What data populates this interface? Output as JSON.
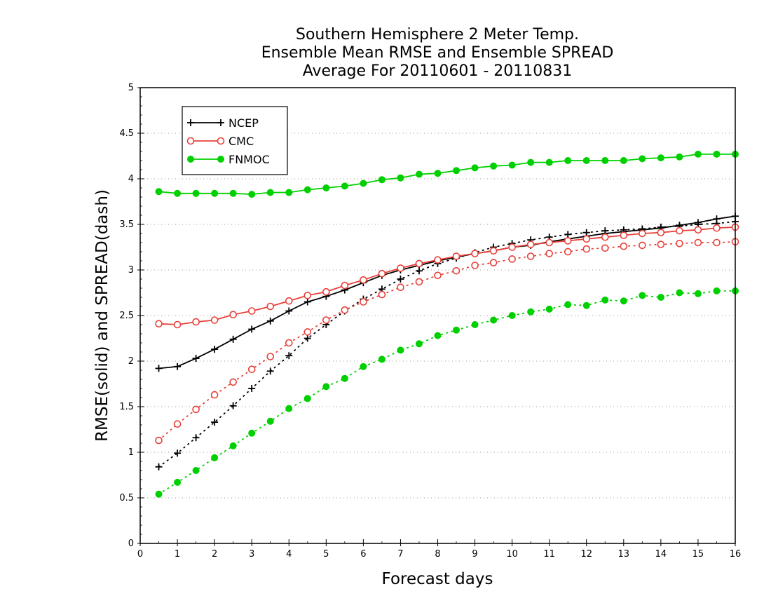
{
  "chart_data": {
    "type": "line",
    "title": [
      "Southern Hemisphere 2 Meter Temp.",
      "Ensemble Mean RMSE and Ensemble SPREAD",
      "Average For 20110601 - 20110831"
    ],
    "xlabel": "Forecast days",
    "ylabel": "RMSE(solid) and SPREAD(dash)",
    "xlim": [
      0,
      16
    ],
    "ylim": [
      0,
      5
    ],
    "xticks": [
      "0",
      "1",
      "2",
      "3",
      "4",
      "5",
      "6",
      "7",
      "8",
      "9",
      "10",
      "11",
      "12",
      "13",
      "14",
      "15",
      "16"
    ],
    "yticks": [
      "0",
      "0.5",
      "1",
      "1.5",
      "2",
      "2.5",
      "3",
      "3.5",
      "4",
      "4.5",
      "5"
    ],
    "grid": "horizontal dotted",
    "legend_position": "top-left",
    "x": [
      0.5,
      1,
      1.5,
      2,
      2.5,
      3,
      3.5,
      4,
      4.5,
      5,
      5.5,
      6,
      6.5,
      7,
      7.5,
      8,
      8.5,
      9,
      9.5,
      10,
      10.5,
      11,
      11.5,
      12,
      12.5,
      13,
      13.5,
      14,
      14.5,
      15,
      15.5,
      16
    ],
    "series": [
      {
        "name": "NCEP",
        "metric": "RMSE",
        "color": "#000000",
        "marker": "plus",
        "line": "solid",
        "values": [
          1.92,
          1.94,
          2.03,
          2.13,
          2.24,
          2.35,
          2.44,
          2.55,
          2.65,
          2.71,
          2.78,
          2.86,
          2.94,
          3.0,
          3.05,
          3.1,
          3.14,
          3.18,
          3.21,
          3.25,
          3.27,
          3.31,
          3.34,
          3.37,
          3.4,
          3.42,
          3.44,
          3.46,
          3.49,
          3.52,
          3.56,
          3.59
        ]
      },
      {
        "name": "NCEP",
        "metric": "SPREAD",
        "color": "#000000",
        "marker": "plus",
        "line": "dotted",
        "values": [
          0.84,
          0.99,
          1.16,
          1.33,
          1.51,
          1.7,
          1.89,
          2.06,
          2.25,
          2.4,
          2.55,
          2.68,
          2.79,
          2.9,
          2.99,
          3.07,
          3.13,
          3.19,
          3.25,
          3.29,
          3.33,
          3.36,
          3.39,
          3.41,
          3.43,
          3.44,
          3.45,
          3.47,
          3.48,
          3.5,
          3.51,
          3.53
        ]
      },
      {
        "name": "CMC",
        "metric": "RMSE",
        "color": "#e8403a",
        "marker": "open-circle",
        "line": "solid",
        "values": [
          2.41,
          2.4,
          2.43,
          2.45,
          2.51,
          2.55,
          2.6,
          2.66,
          2.72,
          2.76,
          2.83,
          2.89,
          2.96,
          3.02,
          3.07,
          3.11,
          3.15,
          3.18,
          3.21,
          3.25,
          3.28,
          3.3,
          3.32,
          3.34,
          3.36,
          3.38,
          3.4,
          3.41,
          3.43,
          3.44,
          3.46,
          3.47
        ]
      },
      {
        "name": "CMC",
        "metric": "SPREAD",
        "color": "#e8403a",
        "marker": "open-circle",
        "line": "dotted",
        "values": [
          1.13,
          1.31,
          1.47,
          1.63,
          1.77,
          1.91,
          2.05,
          2.2,
          2.32,
          2.45,
          2.56,
          2.65,
          2.73,
          2.81,
          2.87,
          2.94,
          2.99,
          3.05,
          3.08,
          3.12,
          3.15,
          3.18,
          3.2,
          3.23,
          3.24,
          3.26,
          3.27,
          3.28,
          3.29,
          3.3,
          3.3,
          3.31
        ]
      },
      {
        "name": "FNMOC",
        "metric": "RMSE",
        "color": "#00d000",
        "marker": "filled-circle",
        "line": "solid",
        "values": [
          3.86,
          3.84,
          3.84,
          3.84,
          3.84,
          3.83,
          3.85,
          3.85,
          3.88,
          3.9,
          3.92,
          3.95,
          3.99,
          4.01,
          4.05,
          4.06,
          4.09,
          4.12,
          4.14,
          4.15,
          4.18,
          4.18,
          4.2,
          4.2,
          4.2,
          4.2,
          4.22,
          4.23,
          4.24,
          4.27,
          4.27,
          4.27
        ]
      },
      {
        "name": "FNMOC",
        "metric": "SPREAD",
        "color": "#00d000",
        "marker": "filled-circle",
        "line": "dotted",
        "values": [
          0.54,
          0.67,
          0.8,
          0.94,
          1.07,
          1.21,
          1.34,
          1.48,
          1.59,
          1.72,
          1.81,
          1.94,
          2.02,
          2.12,
          2.19,
          2.28,
          2.34,
          2.4,
          2.45,
          2.5,
          2.54,
          2.57,
          2.62,
          2.61,
          2.67,
          2.66,
          2.72,
          2.7,
          2.75,
          2.74,
          2.77,
          2.77
        ]
      }
    ]
  }
}
